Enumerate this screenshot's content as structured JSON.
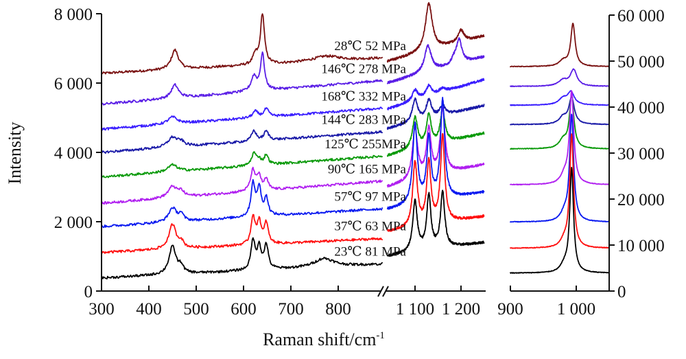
{
  "chart_data": {
    "type": "line",
    "title": "",
    "xlabel": "Raman shift/cm",
    "xlabel_superscript": "-1",
    "ylabel_left": "Intensity",
    "ylabel_right": "",
    "grid": false,
    "legend": "inline annotations placed above each spectrum",
    "panels": [
      {
        "name": "low-range",
        "axis": "left",
        "xlim": [
          300,
          900
        ],
        "xticks": [
          300,
          400,
          500,
          600,
          700,
          800
        ],
        "xtick_labels": [
          "300",
          "400",
          "500",
          "600",
          "700",
          "800"
        ],
        "x_break_after": true
      },
      {
        "name": "mid-range",
        "axis": "left",
        "xlim": [
          1025,
          1250
        ],
        "xticks": [
          1100,
          1200
        ],
        "xtick_labels": [
          "1 100",
          "1 200"
        ]
      },
      {
        "name": "high-range",
        "axis": "right",
        "xlim": [
          900,
          1050
        ],
        "xticks": [
          900,
          1000
        ],
        "xtick_labels": [
          "900",
          "1 000"
        ]
      }
    ],
    "y_left": {
      "ylim": [
        0,
        8000
      ],
      "ticks": [
        0,
        2000,
        4000,
        6000,
        8000
      ],
      "tick_labels": [
        "0",
        "2 000",
        "4 000",
        "6 000",
        "8 000"
      ]
    },
    "y_right": {
      "ylim": [
        0,
        60000
      ],
      "ticks": [
        0,
        10000,
        20000,
        30000,
        40000,
        50000,
        60000
      ],
      "tick_labels": [
        "0",
        "10 000",
        "20 000",
        "30 000",
        "40 000",
        "50 000",
        "60 000"
      ]
    },
    "series": [
      {
        "name": "28℃ 52 MPa",
        "label_temp": "28℃",
        "label_pressure": "52 MPa",
        "color": "#7a1212",
        "low": {
          "base_start": 6280,
          "base_end": 6720,
          "peaks": [
            [
              455,
              560,
              9
            ],
            [
              625,
              280,
              6
            ],
            [
              640,
              1450,
              5
            ],
            [
              775,
              150,
              35
            ]
          ]
        },
        "mid": {
          "base_start": 6620,
          "base_end": 7350,
          "peaks": [
            [
              1130,
              1350,
              9
            ],
            [
              1200,
              340,
              8
            ]
          ]
        },
        "high": {
          "base": 48800,
          "peaks": [
            [
              980,
              1200,
              7
            ],
            [
              995,
              9200,
              4
            ]
          ]
        }
      },
      {
        "name": "146℃ 278 MPa",
        "label_temp": "146℃",
        "label_pressure": "278 MPa",
        "color": "#5a1ee6",
        "low": {
          "base_start": 5390,
          "base_end": 6080,
          "peaks": [
            [
              455,
              380,
              9
            ],
            [
              622,
              420,
              7
            ],
            [
              640,
              1050,
              5
            ]
          ]
        },
        "mid": {
          "base_start": 6000,
          "base_end": 6750,
          "peaks": [
            [
              1128,
              750,
              9
            ],
            [
              1196,
              680,
              7
            ],
            [
              1185,
              150,
              6
            ]
          ]
        },
        "high": {
          "base": 44500,
          "peaks": [
            [
              980,
              1300,
              8
            ],
            [
              996,
              3500,
              6
            ]
          ]
        }
      },
      {
        "name": "168℃ 332 MPa",
        "label_temp": "168℃",
        "label_pressure": "332 MPa",
        "color": "#3a1eff",
        "low": {
          "base_start": 4670,
          "base_end": 5280,
          "peaks": [
            [
              450,
              200,
              12
            ],
            [
              625,
              180,
              7
            ],
            [
              648,
              230,
              6
            ]
          ]
        },
        "mid": {
          "base_start": 5250,
          "base_end": 6100,
          "peaks": [
            [
              1100,
              300,
              7
            ],
            [
              1130,
              300,
              7
            ],
            [
              1160,
              120,
              8
            ]
          ]
        },
        "high": {
          "base": 40400,
          "peaks": [
            [
              980,
              1400,
              8
            ],
            [
              992,
              2700,
              6
            ]
          ]
        }
      },
      {
        "name": "144℃ 283 MPa",
        "label_temp": "144℃",
        "label_pressure": "283 MPa",
        "color": "#1a1aa8",
        "low": {
          "base_start": 4000,
          "base_end": 4600,
          "peaks": [
            [
              450,
              280,
              12
            ],
            [
              468,
              120,
              8
            ],
            [
              622,
              300,
              6
            ],
            [
              648,
              260,
              6
            ]
          ]
        },
        "mid": {
          "base_start": 4680,
          "base_end": 5350,
          "peaks": [
            [
              1100,
              650,
              7
            ],
            [
              1130,
              520,
              7
            ],
            [
              1160,
              280,
              7
            ]
          ]
        },
        "high": {
          "base": 36200,
          "peaks": [
            [
              980,
              1500,
              7
            ],
            [
              993,
              5700,
              5
            ]
          ]
        }
      },
      {
        "name": "125℃ 255MPa",
        "label_temp": "125℃",
        "label_pressure": "255MPa",
        "color": "#0a9a0a",
        "low": {
          "base_start": 3290,
          "base_end": 3900,
          "peaks": [
            [
              450,
              200,
              12
            ],
            [
              622,
              350,
              6
            ],
            [
              633,
              150,
              5
            ],
            [
              648,
              280,
              5
            ]
          ]
        },
        "mid": {
          "base_start": 3900,
          "base_end": 4550,
          "peaks": [
            [
              1100,
              900,
              7
            ],
            [
              1130,
              880,
              6
            ],
            [
              1160,
              950,
              6
            ]
          ]
        },
        "high": {
          "base": 30900,
          "peaks": [
            [
              980,
              1800,
              7
            ],
            [
              993,
              11500,
              4
            ]
          ]
        }
      },
      {
        "name": "90℃ 165 MPa",
        "label_temp": "90℃",
        "label_pressure": "165 MPa",
        "color": "#b020f0",
        "low": {
          "base_start": 2530,
          "base_end": 3180,
          "peaks": [
            [
              450,
              320,
              11
            ],
            [
              468,
              150,
              7
            ],
            [
              620,
              600,
              6
            ],
            [
              633,
              400,
              5
            ],
            [
              648,
              300,
              5
            ]
          ]
        },
        "mid": {
          "base_start": 3000,
          "base_end": 3650,
          "peaks": [
            [
              1100,
              1450,
              7
            ],
            [
              1130,
              1350,
              6
            ],
            [
              1160,
              1850,
              6
            ]
          ]
        },
        "high": {
          "base": 23100,
          "peaks": [
            [
              982,
              1800,
              7
            ],
            [
              993,
              20000,
              3.8
            ]
          ]
        }
      },
      {
        "name": "57℃ 97 MPa",
        "label_temp": "57℃",
        "label_pressure": "97 MPa",
        "color": "#0a1af0",
        "low": {
          "base_start": 1860,
          "base_end": 2380,
          "peaks": [
            [
              450,
              400,
              10
            ],
            [
              468,
              200,
              6
            ],
            [
              620,
              950,
              5
            ],
            [
              633,
              800,
              5
            ],
            [
              648,
              500,
              5
            ]
          ]
        },
        "mid": {
          "base_start": 2350,
          "base_end": 2850,
          "peaks": [
            [
              1100,
              2300,
              6
            ],
            [
              1130,
              1800,
              5.5
            ],
            [
              1160,
              2850,
              5.5
            ]
          ]
        },
        "high": {
          "base": 15000,
          "peaks": [
            [
              982,
              1700,
              7
            ],
            [
              993,
              23000,
              3.6
            ]
          ]
        }
      },
      {
        "name": "37℃ 63 MPa",
        "label_temp": "37℃",
        "label_pressure": "63 MPa",
        "color": "#ff1010",
        "low": {
          "base_start": 1110,
          "base_end": 1520,
          "peaks": [
            [
              450,
              700,
              9
            ],
            [
              468,
              180,
              6
            ],
            [
              620,
              800,
              5
            ],
            [
              633,
              650,
              5
            ],
            [
              648,
              600,
              5
            ]
          ]
        },
        "mid": {
          "base_start": 1700,
          "base_end": 2150,
          "peaks": [
            [
              1100,
              1850,
              6
            ],
            [
              1130,
              1800,
              5.5
            ],
            [
              1160,
              2500,
              5.5
            ]
          ]
        },
        "high": {
          "base": 9300,
          "peaks": [
            [
              982,
              1500,
              7
            ],
            [
              993,
              24500,
              3.5
            ]
          ]
        }
      },
      {
        "name": "23℃ 81 MPa",
        "label_temp": "23℃",
        "label_pressure": "81 MPa",
        "color": "#000000",
        "low": {
          "base_start": 375,
          "base_end": 780,
          "peaks": [
            [
              450,
              800,
              9
            ],
            [
              468,
              200,
              6
            ],
            [
              620,
              850,
              5
            ],
            [
              633,
              650,
              5
            ],
            [
              648,
              700,
              5
            ],
            [
              770,
              250,
              25
            ]
          ]
        },
        "mid": {
          "base_start": 1000,
          "base_end": 1400,
          "peaks": [
            [
              1100,
              1450,
              6
            ],
            [
              1130,
              1550,
              5.5
            ],
            [
              1160,
              1600,
              5.5
            ]
          ]
        },
        "high": {
          "base": 3900,
          "peaks": [
            [
              982,
              1500,
              7
            ],
            [
              993,
              22500,
              3.5
            ]
          ]
        }
      }
    ]
  }
}
